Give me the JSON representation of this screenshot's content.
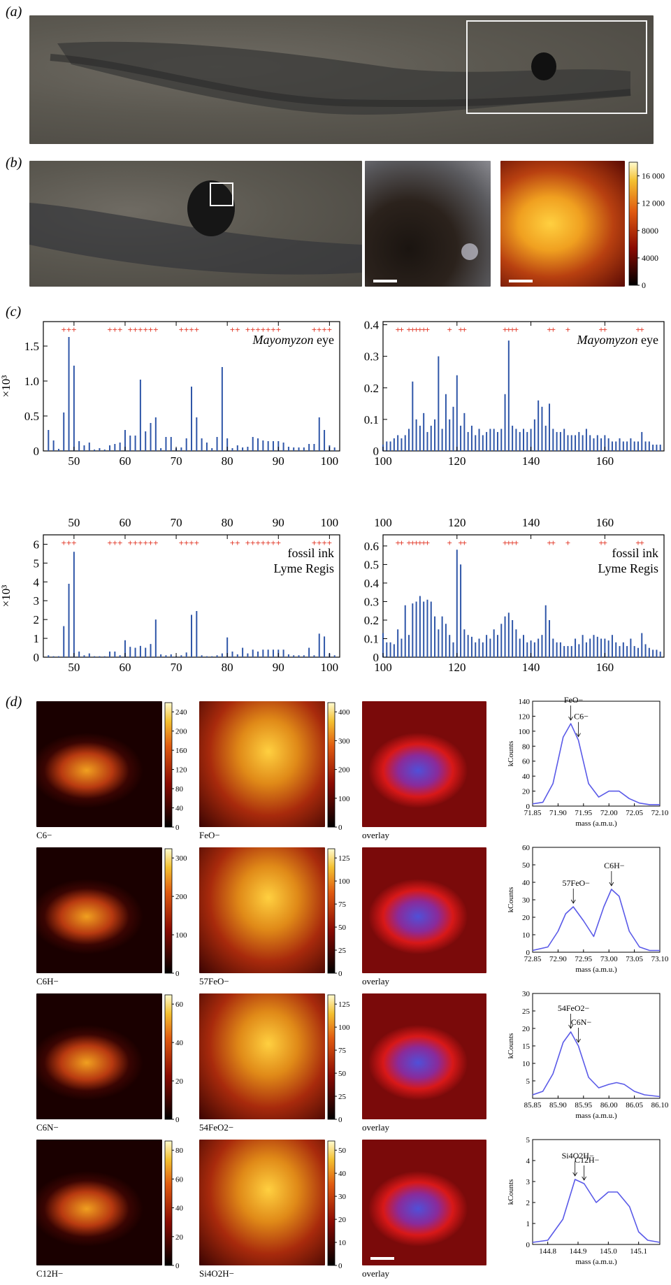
{
  "panels": {
    "a": {
      "label": "(a)"
    },
    "b": {
      "label": "(b)",
      "colorbar_ticks": [
        "16 000",
        "12 000",
        "8000",
        "4000",
        "0"
      ],
      "colorbar_max": 18000
    },
    "c": {
      "label": "(c)",
      "plots": [
        {
          "id": "c1",
          "annotation": [
            "Mayomyzon eye"
          ],
          "ylabel": "×10³",
          "yticks": [
            "0",
            "0.5",
            "1.0",
            "1.5"
          ],
          "xticks": [
            "50",
            "60",
            "70",
            "80",
            "90",
            "100"
          ]
        },
        {
          "id": "c2",
          "annotation": [
            "Mayomyzon eye"
          ],
          "ylabel": "",
          "yticks": [
            "0",
            "0.1",
            "0.2",
            "0.3",
            "0.4"
          ],
          "xticks": [
            "100",
            "120",
            "140",
            "160"
          ]
        },
        {
          "id": "c3",
          "annotation": [
            "fossil ink",
            "Lyme Regis"
          ],
          "ylabel": "×10³",
          "yticks": [
            "0",
            "1",
            "2",
            "3",
            "4",
            "5",
            "6"
          ],
          "xticks": [
            "50",
            "60",
            "70",
            "80",
            "90",
            "100"
          ]
        },
        {
          "id": "c4",
          "annotation": [
            "fossil ink",
            "Lyme Regis"
          ],
          "ylabel": "",
          "yticks": [
            "0",
            "0.1",
            "0.2",
            "0.3",
            "0.4",
            "0.5",
            "0.6"
          ],
          "xticks": [
            "100",
            "120",
            "140",
            "160"
          ]
        }
      ]
    },
    "d": {
      "label": "(d)",
      "rows": [
        {
          "left_label": "C6−",
          "mid_label": "FeO−",
          "overlay_label": "overlay",
          "left_ticks": [
            "240",
            "200",
            "160",
            "120",
            "80",
            "40",
            "0"
          ],
          "mid_ticks": [
            "400",
            "300",
            "200",
            "100",
            "0"
          ],
          "spectrum": {
            "ylabel": "kCounts",
            "xlabel": "mass (a.m.u.)",
            "xticks": [
              "71.85",
              "71.90",
              "71.95",
              "72.00",
              "72.05",
              "72.10"
            ],
            "yticks": [
              "0",
              "20",
              "40",
              "60",
              "80",
              "100",
              "120",
              "140"
            ],
            "peak1": "FeO−",
            "peak2": "C6−"
          }
        },
        {
          "left_label": "C6H−",
          "mid_label": "57FeO−",
          "overlay_label": "overlay",
          "left_ticks": [
            "300",
            "200",
            "100",
            "0"
          ],
          "mid_ticks": [
            "125",
            "100",
            "75",
            "50",
            "25",
            "0"
          ],
          "spectrum": {
            "ylabel": "kCounts",
            "xlabel": "mass (a.m.u.)",
            "xticks": [
              "72.85",
              "72.90",
              "72.95",
              "73.00",
              "73.05",
              "73.10"
            ],
            "yticks": [
              "0",
              "10",
              "20",
              "30",
              "40",
              "50",
              "60"
            ],
            "peak1": "57FeO−",
            "peak2": "C6H−"
          }
        },
        {
          "left_label": "C6N−",
          "mid_label": "54FeO2−",
          "overlay_label": "overlay",
          "left_ticks": [
            "60",
            "40",
            "20",
            "0"
          ],
          "mid_ticks": [
            "125",
            "100",
            "75",
            "50",
            "25",
            "0"
          ],
          "spectrum": {
            "ylabel": "kCounts",
            "xlabel": "mass (a.m.u.)",
            "xticks": [
              "85.85",
              "85.90",
              "85.95",
              "86.00",
              "86.05",
              "86.10"
            ],
            "yticks": [
              "5",
              "10",
              "15",
              "20",
              "25",
              "30"
            ],
            "peak1": "54FeO2−",
            "peak2": "C6N−"
          }
        },
        {
          "left_label": "C12H−",
          "mid_label": "Si4O2H−",
          "overlay_label": "overlay",
          "left_ticks": [
            "80",
            "60",
            "40",
            "20",
            "0"
          ],
          "mid_ticks": [
            "50",
            "40",
            "30",
            "20",
            "10",
            "0"
          ],
          "spectrum": {
            "ylabel": "kCounts",
            "xlabel": "mass (a.m.u.)",
            "xticks": [
              "144.8",
              "144.9",
              "145.0",
              "145.1"
            ],
            "yticks": [
              "0",
              "1",
              "2",
              "3",
              "4",
              "5"
            ],
            "peak1": "Si4O2H−",
            "peak2": "C12H−"
          }
        }
      ]
    }
  },
  "chart_data": [
    {
      "type": "bar",
      "title": "",
      "annotation": "Mayomyzon eye",
      "ylabel": "×10³",
      "xlim": [
        44,
        102
      ],
      "ylim": [
        0,
        1.85
      ],
      "x": [
        45,
        46,
        47,
        48,
        49,
        50,
        51,
        52,
        53,
        54,
        55,
        56,
        57,
        58,
        59,
        60,
        61,
        62,
        63,
        64,
        65,
        66,
        67,
        68,
        69,
        70,
        71,
        72,
        73,
        74,
        75,
        76,
        77,
        78,
        79,
        80,
        81,
        82,
        83,
        84,
        85,
        86,
        87,
        88,
        89,
        90,
        91,
        92,
        93,
        94,
        95,
        96,
        97,
        98,
        99,
        100,
        101
      ],
      "y": [
        0.3,
        0.15,
        0.03,
        0.55,
        1.63,
        1.22,
        0.14,
        0.08,
        0.12,
        0.02,
        0.04,
        0.02,
        0.08,
        0.1,
        0.12,
        0.3,
        0.22,
        0.22,
        1.02,
        0.28,
        0.4,
        0.48,
        0.04,
        0.2,
        0.2,
        0.04,
        0.05,
        0.18,
        0.92,
        0.48,
        0.18,
        0.12,
        0.04,
        0.2,
        1.2,
        0.18,
        0.04,
        0.08,
        0.05,
        0.06,
        0.2,
        0.18,
        0.15,
        0.14,
        0.14,
        0.14,
        0.12,
        0.06,
        0.05,
        0.05,
        0.05,
        0.1,
        0.1,
        0.48,
        0.3,
        0.08,
        0.05
      ]
    },
    {
      "type": "bar",
      "title": "",
      "annotation": "Mayomyzon eye",
      "xlim": [
        100,
        176
      ],
      "ylim": [
        0,
        0.41
      ],
      "x": [
        100,
        101,
        102,
        103,
        104,
        105,
        106,
        107,
        108,
        109,
        110,
        111,
        112,
        113,
        114,
        115,
        116,
        117,
        118,
        119,
        120,
        121,
        122,
        123,
        124,
        125,
        126,
        127,
        128,
        129,
        130,
        131,
        132,
        133,
        134,
        135,
        136,
        137,
        138,
        139,
        140,
        141,
        142,
        143,
        144,
        145,
        146,
        147,
        148,
        149,
        150,
        151,
        152,
        153,
        154,
        155,
        156,
        157,
        158,
        159,
        160,
        161,
        162,
        163,
        164,
        165,
        166,
        167,
        168,
        169,
        170,
        171,
        172,
        173,
        174,
        175
      ],
      "y": [
        0.02,
        0.03,
        0.03,
        0.04,
        0.05,
        0.04,
        0.05,
        0.07,
        0.22,
        0.1,
        0.08,
        0.12,
        0.06,
        0.08,
        0.1,
        0.3,
        0.07,
        0.18,
        0.1,
        0.14,
        0.24,
        0.08,
        0.12,
        0.06,
        0.08,
        0.05,
        0.07,
        0.05,
        0.06,
        0.07,
        0.07,
        0.06,
        0.07,
        0.18,
        0.35,
        0.08,
        0.07,
        0.06,
        0.07,
        0.06,
        0.07,
        0.1,
        0.16,
        0.14,
        0.08,
        0.15,
        0.07,
        0.06,
        0.06,
        0.07,
        0.05,
        0.05,
        0.05,
        0.06,
        0.05,
        0.07,
        0.05,
        0.04,
        0.05,
        0.04,
        0.05,
        0.04,
        0.03,
        0.03,
        0.04,
        0.03,
        0.03,
        0.04,
        0.03,
        0.03,
        0.06,
        0.03,
        0.03,
        0.02,
        0.02,
        0.02
      ]
    },
    {
      "type": "bar",
      "title": "",
      "annotation": "fossil ink Lyme Regis",
      "ylabel": "×10³",
      "xlim": [
        44,
        102
      ],
      "ylim": [
        0,
        6.5
      ],
      "x": [
        45,
        46,
        47,
        48,
        49,
        50,
        51,
        52,
        53,
        54,
        55,
        56,
        57,
        58,
        59,
        60,
        61,
        62,
        63,
        64,
        65,
        66,
        67,
        68,
        69,
        70,
        71,
        72,
        73,
        74,
        75,
        76,
        77,
        78,
        79,
        80,
        81,
        82,
        83,
        84,
        85,
        86,
        87,
        88,
        89,
        90,
        91,
        92,
        93,
        94,
        95,
        96,
        97,
        98,
        99,
        100,
        101
      ],
      "y": [
        0.1,
        0.05,
        0.05,
        1.65,
        3.9,
        5.6,
        0.3,
        0.1,
        0.2,
        0.05,
        0.05,
        0.05,
        0.3,
        0.3,
        0.1,
        0.9,
        0.55,
        0.5,
        0.6,
        0.5,
        0.7,
        2.0,
        0.15,
        0.1,
        0.15,
        0.05,
        0.1,
        0.25,
        2.25,
        2.45,
        0.1,
        0.05,
        0.05,
        0.1,
        0.2,
        1.05,
        0.3,
        0.15,
        0.5,
        0.2,
        0.4,
        0.3,
        0.4,
        0.4,
        0.4,
        0.4,
        0.4,
        0.15,
        0.1,
        0.1,
        0.1,
        0.5,
        0.1,
        1.25,
        1.1,
        0.2,
        0.1
      ]
    },
    {
      "type": "bar",
      "title": "",
      "annotation": "fossil ink Lyme Regis",
      "xlim": [
        100,
        176
      ],
      "ylim": [
        0,
        0.66
      ],
      "x": [
        100,
        101,
        102,
        103,
        104,
        105,
        106,
        107,
        108,
        109,
        110,
        111,
        112,
        113,
        114,
        115,
        116,
        117,
        118,
        119,
        120,
        121,
        122,
        123,
        124,
        125,
        126,
        127,
        128,
        129,
        130,
        131,
        132,
        133,
        134,
        135,
        136,
        137,
        138,
        139,
        140,
        141,
        142,
        143,
        144,
        145,
        146,
        147,
        148,
        149,
        150,
        151,
        152,
        153,
        154,
        155,
        156,
        157,
        158,
        159,
        160,
        161,
        162,
        163,
        164,
        165,
        166,
        167,
        168,
        169,
        170,
        171,
        172,
        173,
        174,
        175
      ],
      "y": [
        0.13,
        0.08,
        0.08,
        0.07,
        0.15,
        0.1,
        0.28,
        0.12,
        0.29,
        0.3,
        0.33,
        0.3,
        0.31,
        0.3,
        0.22,
        0.15,
        0.22,
        0.18,
        0.12,
        0.08,
        0.58,
        0.5,
        0.15,
        0.12,
        0.11,
        0.08,
        0.1,
        0.08,
        0.12,
        0.1,
        0.15,
        0.12,
        0.18,
        0.22,
        0.24,
        0.2,
        0.15,
        0.1,
        0.12,
        0.08,
        0.09,
        0.08,
        0.1,
        0.12,
        0.28,
        0.2,
        0.1,
        0.08,
        0.08,
        0.06,
        0.06,
        0.06,
        0.1,
        0.07,
        0.12,
        0.08,
        0.1,
        0.12,
        0.11,
        0.1,
        0.1,
        0.09,
        0.12,
        0.08,
        0.06,
        0.08,
        0.06,
        0.1,
        0.06,
        0.05,
        0.13,
        0.07,
        0.05,
        0.04,
        0.04,
        0.03
      ]
    },
    {
      "type": "line",
      "title": "",
      "xlabel": "mass (a.m.u.)",
      "ylabel": "kCounts",
      "xlim": [
        71.85,
        72.1
      ],
      "ylim": [
        0,
        140
      ],
      "series": [
        {
          "x": [
            71.85,
            71.87,
            71.89,
            71.91,
            71.925,
            71.94,
            71.96,
            71.98,
            72.0,
            72.02,
            72.04,
            72.06,
            72.08,
            72.1
          ],
          "y": [
            3,
            5,
            30,
            92,
            110,
            88,
            30,
            12,
            20,
            20,
            10,
            4,
            2,
            2
          ]
        }
      ]
    },
    {
      "type": "line",
      "title": "",
      "xlabel": "mass (a.m.u.)",
      "ylabel": "kCounts",
      "xlim": [
        72.85,
        73.1
      ],
      "ylim": [
        0,
        60
      ],
      "series": [
        {
          "x": [
            72.85,
            72.88,
            72.9,
            72.915,
            72.93,
            72.95,
            72.97,
            72.99,
            73.005,
            73.02,
            73.04,
            73.06,
            73.08,
            73.1
          ],
          "y": [
            1,
            3,
            12,
            22,
            26,
            18,
            9,
            26,
            36,
            32,
            12,
            3,
            1,
            1
          ]
        }
      ]
    },
    {
      "type": "line",
      "title": "",
      "xlabel": "mass (a.m.u.)",
      "ylabel": "kCounts",
      "xlim": [
        85.85,
        86.1
      ],
      "ylim": [
        0,
        30
      ],
      "series": [
        {
          "x": [
            85.85,
            85.87,
            85.89,
            85.91,
            85.925,
            85.94,
            85.96,
            85.98,
            86.0,
            86.015,
            86.03,
            86.05,
            86.07,
            86.1
          ],
          "y": [
            1,
            2,
            7,
            16,
            19,
            15,
            6,
            3,
            4,
            4.5,
            4,
            2,
            1,
            0.5
          ]
        }
      ]
    },
    {
      "type": "line",
      "title": "",
      "xlabel": "mass (a.m.u.)",
      "ylabel": "kCounts",
      "xlim": [
        144.75,
        145.17
      ],
      "ylim": [
        0,
        5
      ],
      "series": [
        {
          "x": [
            144.75,
            144.8,
            144.85,
            144.89,
            144.92,
            144.96,
            145.0,
            145.03,
            145.07,
            145.1,
            145.13,
            145.17
          ],
          "y": [
            0.1,
            0.2,
            1.2,
            3.1,
            2.9,
            2.0,
            2.5,
            2.5,
            1.8,
            0.6,
            0.2,
            0.1
          ]
        }
      ]
    }
  ],
  "colors": {
    "axis": "#000000",
    "bars": "#2f56a8",
    "markers": "#e23b2b",
    "spectrum": "#5a5ae8"
  }
}
